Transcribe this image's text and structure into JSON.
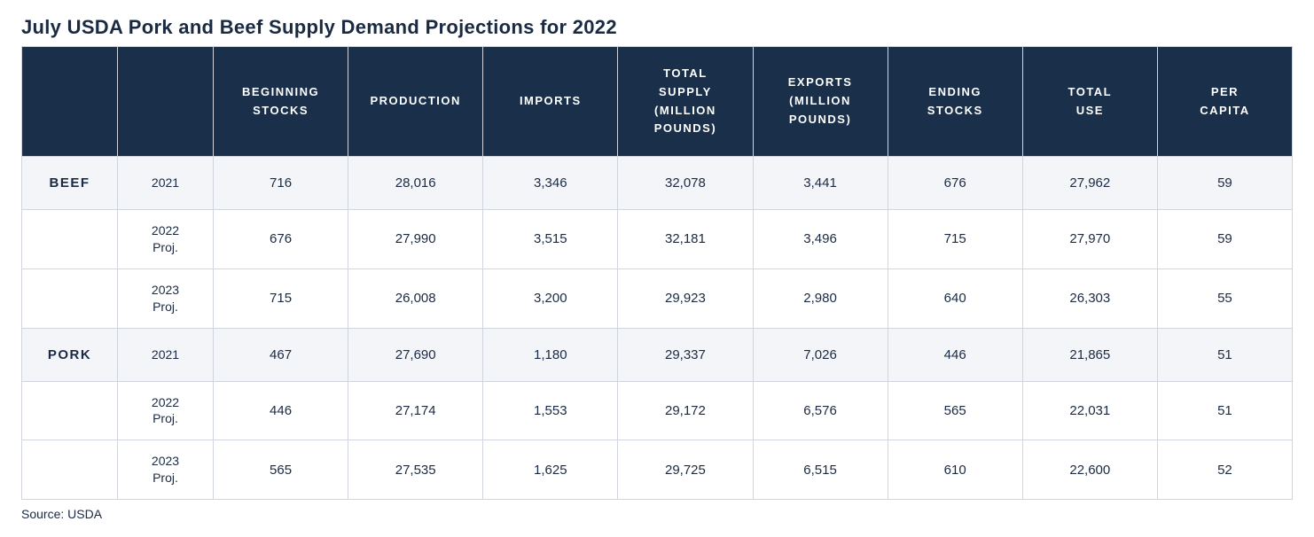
{
  "title": "July USDA Pork and Beef Supply Demand Projections for 2022",
  "source": "Source: USDA",
  "styling": {
    "header_bg": "#1a2f4a",
    "header_text_color": "#ffffff",
    "cell_border_color": "#d0d5dd",
    "shaded_row_bg": "#f3f5f8",
    "body_text_color": "#1a2a42",
    "title_fontsize": 22,
    "header_fontsize": 13,
    "cell_fontsize": 15
  },
  "columns": {
    "c0": "",
    "c1": "",
    "c2": "BEGINNING STOCKS",
    "c3": "PRODUCTION",
    "c4": "IMPORTS",
    "c5": "TOTAL SUPPLY (MILLION POUNDS)",
    "c6": "EXPORTS (MILLION POUNDS)",
    "c7": "ENDING STOCKS",
    "c8": "TOTAL USE",
    "c9": "PER CAPITA"
  },
  "rows": {
    "r0": {
      "category": "BEEF",
      "year": "2021",
      "v2": "716",
      "v3": "28,016",
      "v4": "3,346",
      "v5": "32,078",
      "v6": "3,441",
      "v7": "676",
      "v8": "27,962",
      "v9": "59"
    },
    "r1": {
      "category": "",
      "year": "2022 Proj.",
      "v2": "676",
      "v3": "27,990",
      "v4": "3,515",
      "v5": "32,181",
      "v6": "3,496",
      "v7": "715",
      "v8": "27,970",
      "v9": "59"
    },
    "r2": {
      "category": "",
      "year": "2023 Proj.",
      "v2": "715",
      "v3": "26,008",
      "v4": "3,200",
      "v5": "29,923",
      "v6": "2,980",
      "v7": "640",
      "v8": "26,303",
      "v9": "55"
    },
    "r3": {
      "category": "PORK",
      "year": "2021",
      "v2": "467",
      "v3": "27,690",
      "v4": "1,180",
      "v5": "29,337",
      "v6": "7,026",
      "v7": "446",
      "v8": "21,865",
      "v9": "51"
    },
    "r4": {
      "category": "",
      "year": "2022 Proj.",
      "v2": "446",
      "v3": "27,174",
      "v4": "1,553",
      "v5": "29,172",
      "v6": "6,576",
      "v7": "565",
      "v8": "22,031",
      "v9": "51"
    },
    "r5": {
      "category": "",
      "year": "2023 Proj.",
      "v2": "565",
      "v3": "27,535",
      "v4": "1,625",
      "v5": "29,725",
      "v6": "6,515",
      "v7": "610",
      "v8": "22,600",
      "v9": "52"
    }
  }
}
